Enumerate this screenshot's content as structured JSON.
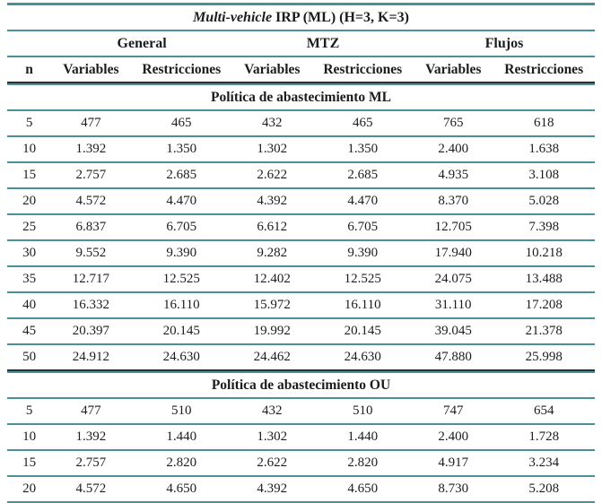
{
  "title": {
    "italic": "Multi-vehicle",
    "rest": " IRP (ML) (H=3, K=3)"
  },
  "header": {
    "n_label": "n",
    "groups": [
      "General",
      "MTZ",
      "Flujos"
    ],
    "subcolumns": [
      "Variables",
      "Restricciones"
    ]
  },
  "sections": [
    {
      "label": "Política de abastecimiento ML",
      "rows": [
        {
          "n": "5",
          "values": [
            "477",
            "465",
            "432",
            "465",
            "765",
            "618"
          ]
        },
        {
          "n": "10",
          "values": [
            "1.392",
            "1.350",
            "1.302",
            "1.350",
            "2.400",
            "1.638"
          ]
        },
        {
          "n": "15",
          "values": [
            "2.757",
            "2.685",
            "2.622",
            "2.685",
            "4.935",
            "3.108"
          ]
        },
        {
          "n": "20",
          "values": [
            "4.572",
            "4.470",
            "4.392",
            "4.470",
            "8.370",
            "5.028"
          ]
        },
        {
          "n": "25",
          "values": [
            "6.837",
            "6.705",
            "6.612",
            "6.705",
            "12.705",
            "7.398"
          ]
        },
        {
          "n": "30",
          "values": [
            "9.552",
            "9.390",
            "9.282",
            "9.390",
            "17.940",
            "10.218"
          ]
        },
        {
          "n": "35",
          "values": [
            "12.717",
            "12.525",
            "12.402",
            "12.525",
            "24.075",
            "13.488"
          ]
        },
        {
          "n": "40",
          "values": [
            "16.332",
            "16.110",
            "15.972",
            "16.110",
            "31.110",
            "17.208"
          ]
        },
        {
          "n": "45",
          "values": [
            "20.397",
            "20.145",
            "19.992",
            "20.145",
            "39.045",
            "21.378"
          ]
        },
        {
          "n": "50",
          "values": [
            "24.912",
            "24.630",
            "24.462",
            "24.630",
            "47.880",
            "25.998"
          ]
        }
      ]
    },
    {
      "label": "Política de abastecimiento OU",
      "rows": [
        {
          "n": "5",
          "values": [
            "477",
            "510",
            "432",
            "510",
            "747",
            "654"
          ]
        },
        {
          "n": "10",
          "values": [
            "1.392",
            "1.440",
            "1.302",
            "1.440",
            "2.400",
            "1.728"
          ]
        },
        {
          "n": "15",
          "values": [
            "2.757",
            "2.820",
            "2.622",
            "2.820",
            "4.917",
            "3.234"
          ]
        },
        {
          "n": "20",
          "values": [
            "4.572",
            "4.650",
            "4.392",
            "4.650",
            "8.730",
            "5.208"
          ]
        }
      ]
    }
  ],
  "colors": {
    "rule_teal": "#4a8f99",
    "rule_dark": "#2e2e2e",
    "text": "#1c1c1c"
  }
}
